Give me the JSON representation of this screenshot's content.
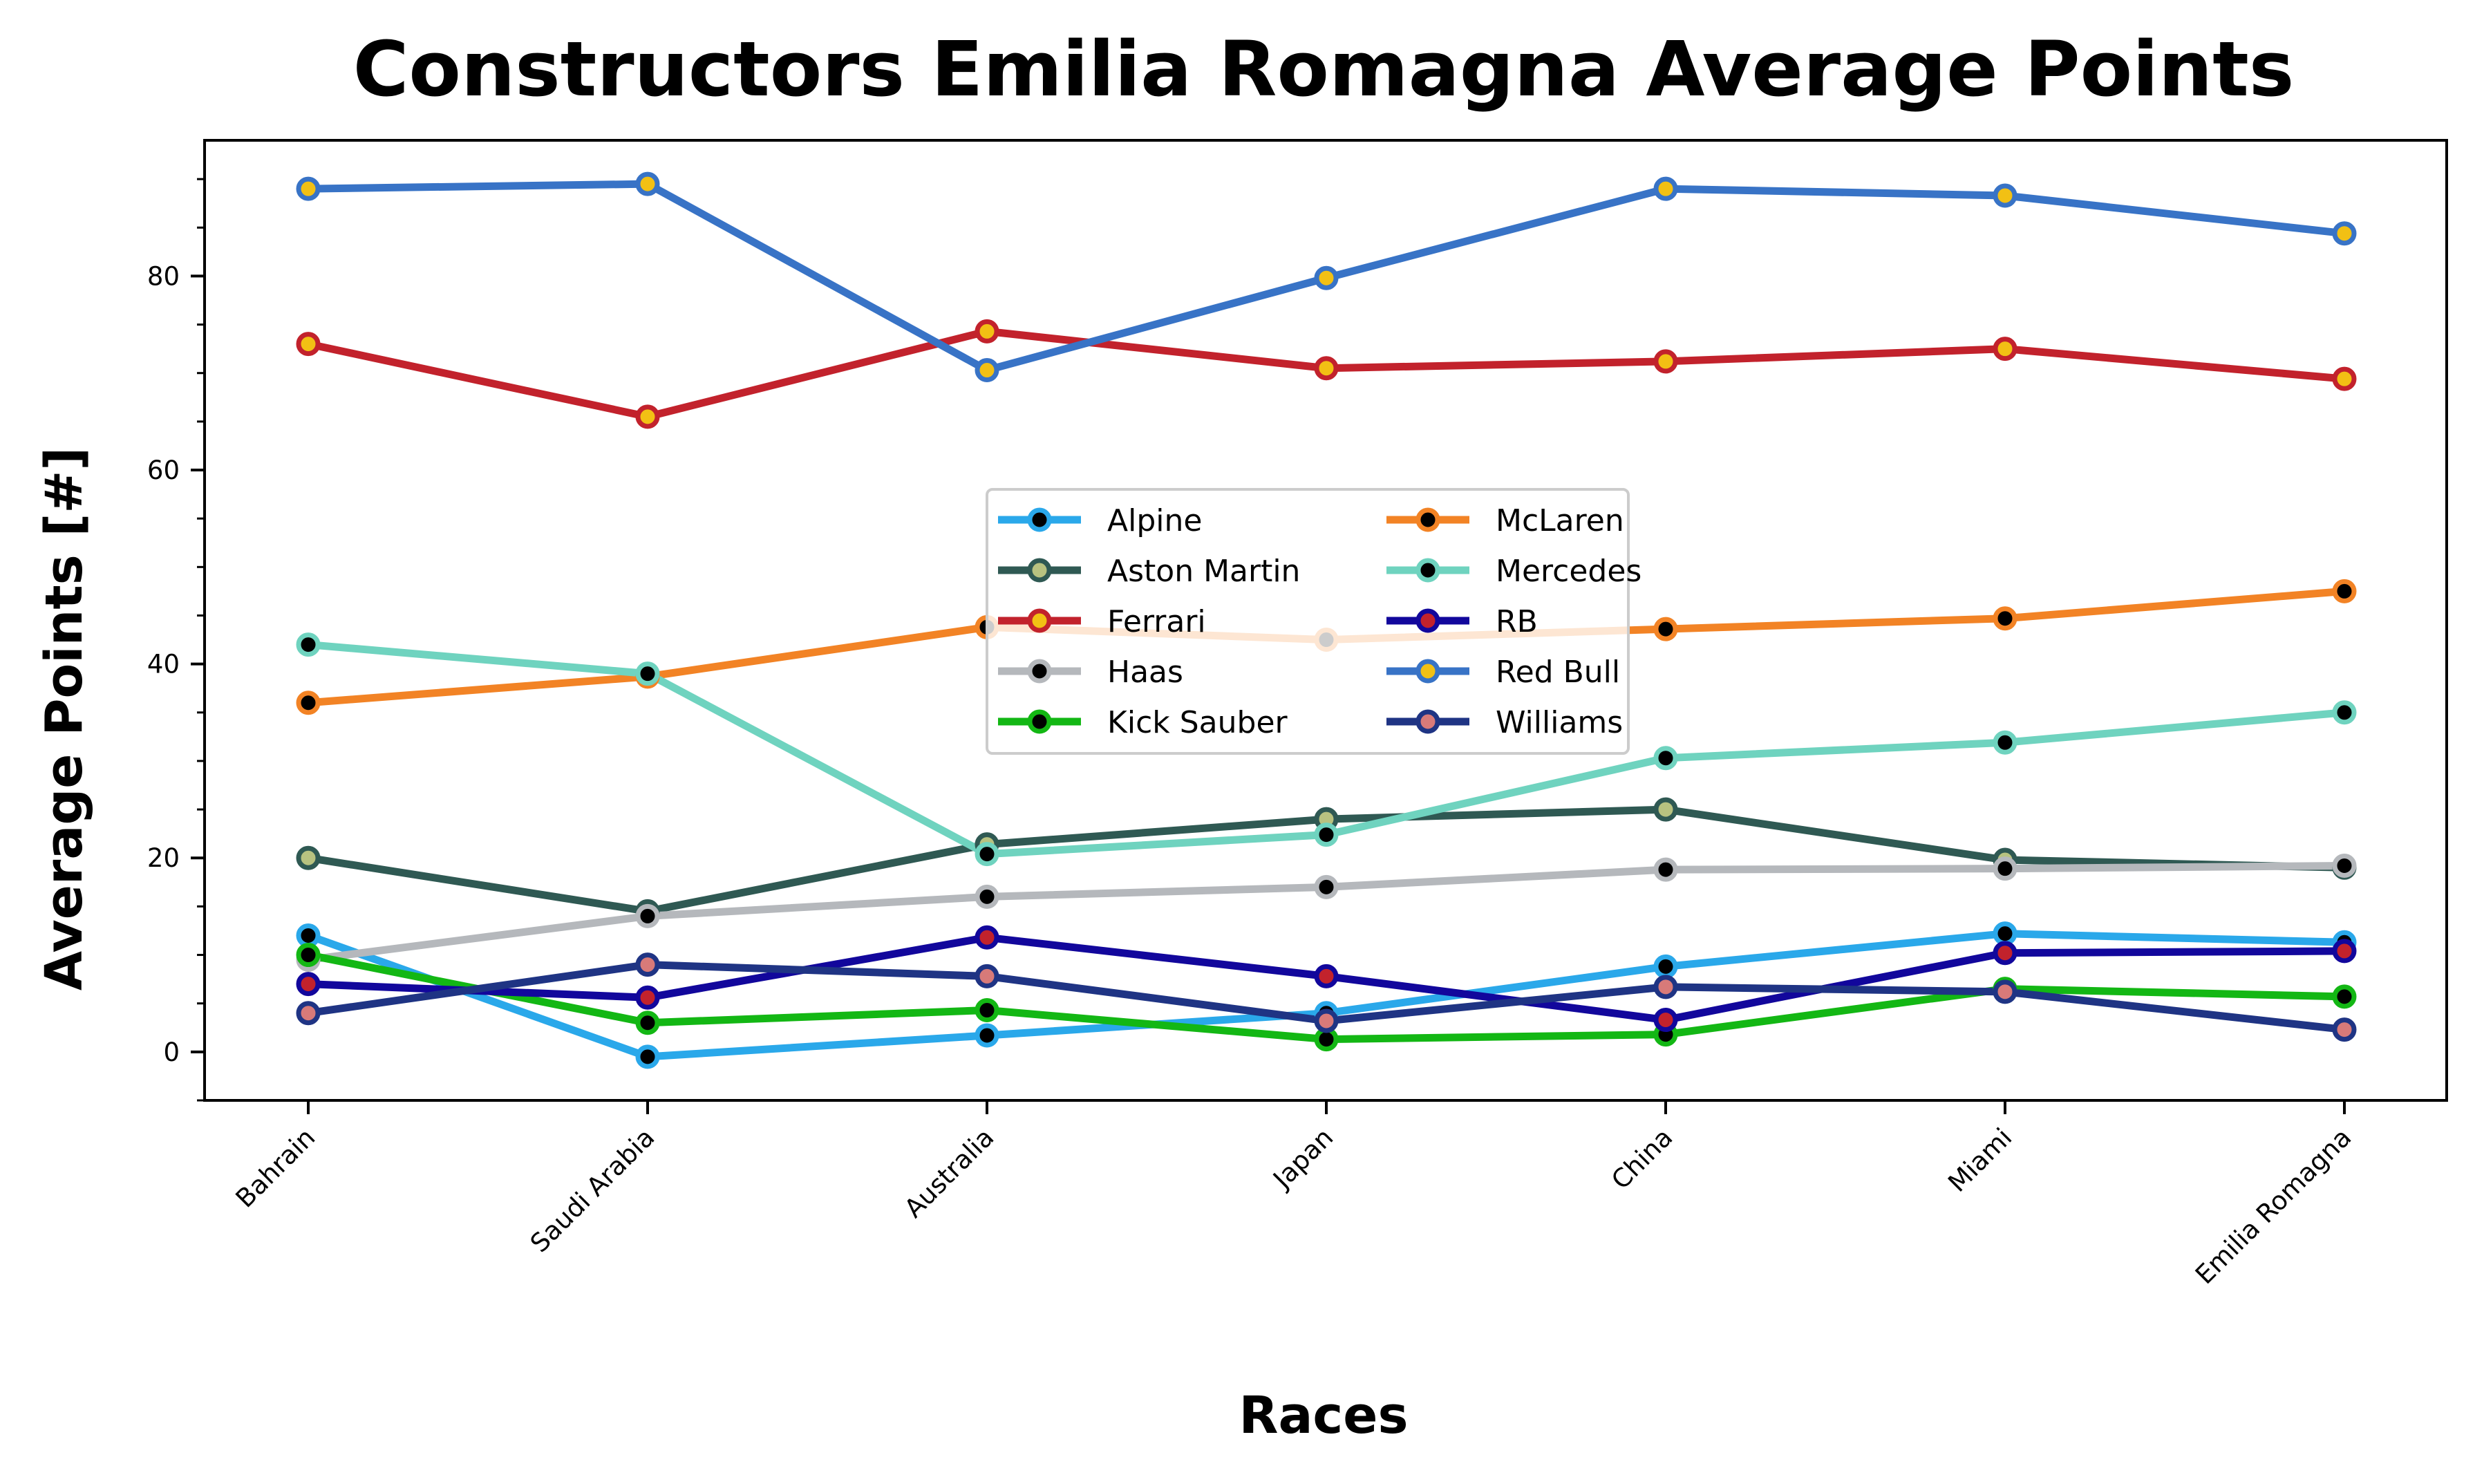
{
  "chart_data": {
    "type": "line",
    "title": "Constructors Emilia Romagna Average Points",
    "xlabel": "Races",
    "ylabel": "Average Points [#]",
    "categories": [
      "Bahrain",
      "Saudi Arabia",
      "Australia",
      "Japan",
      "China",
      "Miami",
      "Emilia Romagna"
    ],
    "ylim": [
      -5,
      94
    ],
    "yticks": [
      0,
      20,
      40,
      60,
      80
    ],
    "grid": false,
    "legend_position": "center",
    "series": [
      {
        "name": "Alpine",
        "color": "#2aa8ea",
        "marker_face": "#000000",
        "values": [
          12,
          -0.5,
          1.7,
          4,
          8.8,
          12.2,
          11.3
        ]
      },
      {
        "name": "Aston Martin",
        "color": "#2f5953",
        "marker_face": "#b8c280",
        "values": [
          20,
          14.5,
          21.4,
          24,
          25,
          19.8,
          19
        ]
      },
      {
        "name": "Ferrari",
        "color": "#c2222c",
        "marker_face": "#f2c014",
        "values": [
          73,
          65.5,
          74.3,
          70.5,
          71.2,
          72.5,
          69.4
        ]
      },
      {
        "name": "Haas",
        "color": "#b5b8bc",
        "marker_face": "#000000",
        "values": [
          9.5,
          14,
          16,
          17,
          18.8,
          18.9,
          19.2
        ]
      },
      {
        "name": "Kick Sauber",
        "color": "#13b714",
        "marker_face": "#000000",
        "values": [
          10,
          3,
          4.3,
          1.3,
          1.8,
          6.5,
          5.7
        ]
      },
      {
        "name": "McLaren",
        "color": "#f28325",
        "marker_face": "#000000",
        "values": [
          36,
          38.7,
          43.8,
          42.5,
          43.6,
          44.7,
          47.5
        ]
      },
      {
        "name": "Mercedes",
        "color": "#6fd3bf",
        "marker_face": "#000000",
        "values": [
          42,
          39,
          20.4,
          22.4,
          30.3,
          31.9,
          35
        ]
      },
      {
        "name": "RB",
        "color": "#12079c",
        "marker_face": "#c2222c",
        "values": [
          7,
          5.6,
          11.8,
          7.8,
          3.3,
          10.2,
          10.4
        ]
      },
      {
        "name": "Red Bull",
        "color": "#3873c6",
        "marker_face": "#f2c014",
        "values": [
          89,
          89.5,
          70.3,
          79.8,
          89,
          88.3,
          84.4
        ]
      },
      {
        "name": "Williams",
        "color": "#1f3484",
        "marker_face": "#d87a79",
        "values": [
          4,
          9,
          7.8,
          3.2,
          6.7,
          6.2,
          2.3
        ]
      }
    ]
  }
}
